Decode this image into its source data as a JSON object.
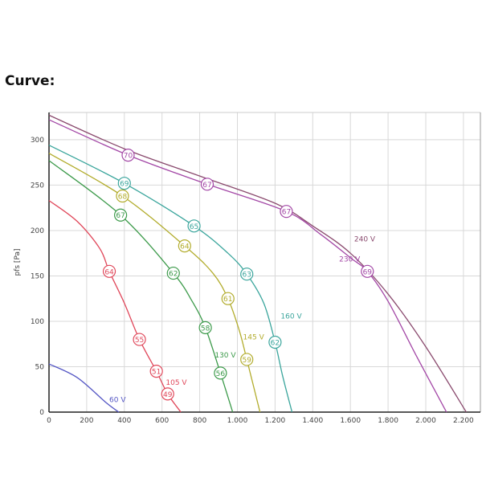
{
  "title": "Curve:",
  "chart_data": {
    "type": "line",
    "title": "Curve:",
    "xlabel": "",
    "ylabel": "pfs [Pa]",
    "xlim": [
      0,
      2290
    ],
    "ylim": [
      0,
      330
    ],
    "grid": true,
    "x_ticks": [
      0,
      200,
      400,
      600,
      800,
      1000,
      1200,
      1400,
      1600,
      1800,
      2000,
      2200
    ],
    "x_tick_labels": [
      "0",
      "200",
      "400",
      "600",
      "800",
      "1.000",
      "1.200",
      "1.400",
      "1.600",
      "1.800",
      "2.000",
      "2.200"
    ],
    "y_ticks": [
      0,
      50,
      100,
      150,
      200,
      250,
      300
    ],
    "y_tick_labels": [
      "0",
      "50",
      "100",
      "150",
      "200",
      "250",
      "300"
    ],
    "series": [
      {
        "name": "240 V",
        "color": "#8a4a6e",
        "label_at": [
          1620,
          188
        ],
        "points": [
          [
            0,
            327
          ],
          [
            400,
            290
          ],
          [
            800,
            260
          ],
          [
            1200,
            230
          ],
          [
            1400,
            205
          ],
          [
            1600,
            175
          ],
          [
            1800,
            130
          ],
          [
            2000,
            72
          ],
          [
            2215,
            0
          ]
        ],
        "markers": []
      },
      {
        "name": "230 V",
        "color": "#a347a6",
        "label_at": [
          1540,
          166
        ],
        "points": [
          [
            0,
            322
          ],
          [
            420,
            283
          ],
          [
            840,
            251
          ],
          [
            1260,
            221
          ],
          [
            1440,
            196
          ],
          [
            1600,
            170
          ],
          [
            1690,
            155
          ],
          [
            1800,
            122
          ],
          [
            1950,
            62
          ],
          [
            2110,
            0
          ]
        ],
        "markers": [
          [
            420,
            283,
            "70"
          ],
          [
            840,
            251,
            "67"
          ],
          [
            1260,
            221,
            "67"
          ],
          [
            1690,
            155,
            "69"
          ]
        ]
      },
      {
        "name": "160 V",
        "color": "#3aa59c",
        "label_at": [
          1230,
          103
        ],
        "points": [
          [
            0,
            294
          ],
          [
            400,
            252
          ],
          [
            770,
            205
          ],
          [
            950,
            175
          ],
          [
            1050,
            152
          ],
          [
            1140,
            120
          ],
          [
            1200,
            77
          ],
          [
            1240,
            40
          ],
          [
            1290,
            0
          ]
        ],
        "markers": [
          [
            400,
            252,
            "69"
          ],
          [
            770,
            205,
            "65"
          ],
          [
            1050,
            152,
            "63"
          ],
          [
            1200,
            77,
            "62"
          ]
        ]
      },
      {
        "name": "145 V",
        "color": "#b2ac2c",
        "label_at": [
          1030,
          80
        ],
        "points": [
          [
            0,
            285
          ],
          [
            390,
            238
          ],
          [
            720,
            183
          ],
          [
            870,
            153
          ],
          [
            950,
            125
          ],
          [
            1010,
            90
          ],
          [
            1050,
            58
          ],
          [
            1120,
            0
          ]
        ],
        "markers": [
          [
            390,
            238,
            "68"
          ],
          [
            720,
            183,
            "64"
          ],
          [
            950,
            125,
            "61"
          ],
          [
            1050,
            58,
            "59"
          ]
        ]
      },
      {
        "name": "130 V",
        "color": "#3c9a4a",
        "label_at": [
          880,
          60
        ],
        "points": [
          [
            0,
            277
          ],
          [
            380,
            217
          ],
          [
            660,
            153
          ],
          [
            760,
            122
          ],
          [
            830,
            93
          ],
          [
            910,
            43
          ],
          [
            975,
            0
          ]
        ],
        "markers": [
          [
            380,
            217,
            "67"
          ],
          [
            660,
            153,
            "62"
          ],
          [
            830,
            93,
            "58"
          ],
          [
            910,
            43,
            "56"
          ]
        ]
      },
      {
        "name": "105 V",
        "color": "#e0475a",
        "label_at": [
          620,
          30
        ],
        "points": [
          [
            0,
            233
          ],
          [
            150,
            210
          ],
          [
            270,
            180
          ],
          [
            320,
            155
          ],
          [
            400,
            120
          ],
          [
            480,
            80
          ],
          [
            570,
            45
          ],
          [
            630,
            20
          ],
          [
            700,
            0
          ]
        ],
        "markers": [
          [
            320,
            155,
            "64"
          ],
          [
            480,
            80,
            "55"
          ],
          [
            570,
            45,
            "51"
          ],
          [
            630,
            20,
            "49"
          ]
        ]
      },
      {
        "name": "60 V",
        "color": "#5456c4",
        "label_at": [
          320,
          11
        ],
        "points": [
          [
            0,
            53
          ],
          [
            150,
            38
          ],
          [
            300,
            11
          ],
          [
            370,
            0
          ]
        ],
        "markers": []
      }
    ]
  }
}
